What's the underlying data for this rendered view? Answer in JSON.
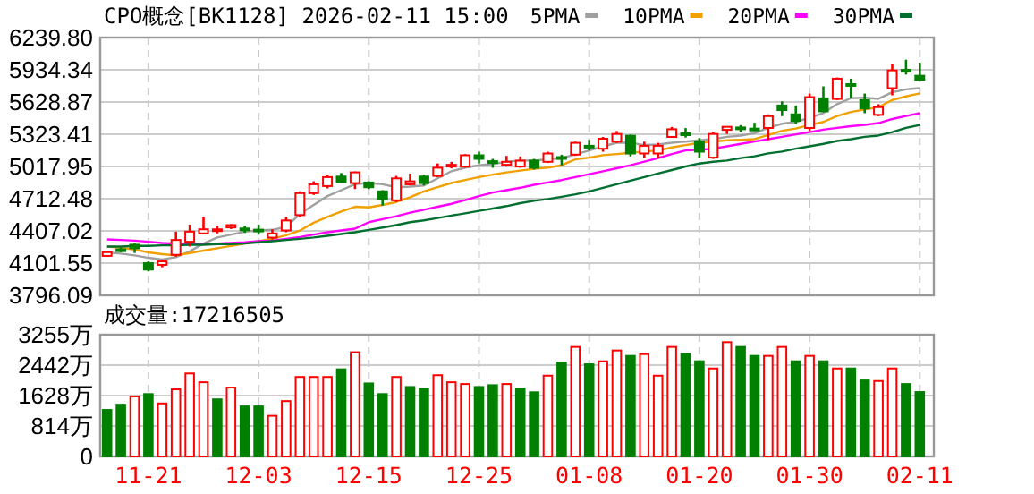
{
  "chart_data": [
    {
      "type": "candlestick",
      "title": "CPO概念[BK1128] 2026-02-11 15:00",
      "categories": [
        null,
        null,
        null,
        null,
        null,
        null,
        null,
        null,
        null,
        null,
        null,
        null,
        null,
        null,
        null,
        null,
        null,
        null,
        null,
        null,
        null,
        null,
        null,
        null,
        null,
        null,
        null,
        null,
        null,
        null,
        null,
        null,
        null,
        null,
        null,
        null,
        null,
        null,
        null,
        null,
        null,
        null,
        null,
        null,
        null,
        null,
        null,
        null,
        null,
        null,
        null,
        null,
        null,
        null,
        null,
        null,
        null,
        null,
        null,
        null
      ],
      "ohlc": [
        [
          4170,
          4210,
          4165,
          4205
        ],
        [
          4232,
          4250,
          4205,
          4226
        ],
        [
          4276,
          4287,
          4198,
          4242
        ],
        [
          4101,
          4118,
          4023,
          4040
        ],
        [
          4085,
          4130,
          4062,
          4118
        ],
        [
          4180,
          4400,
          4163,
          4321
        ],
        [
          4304,
          4467,
          4259,
          4400
        ],
        [
          4383,
          4540,
          4380,
          4422
        ],
        [
          4416,
          4456,
          4383,
          4422
        ],
        [
          4440,
          4470,
          4425,
          4462
        ],
        [
          4430,
          4456,
          4388,
          4425
        ],
        [
          4419,
          4467,
          4371,
          4410
        ],
        [
          4343,
          4422,
          4326,
          4383
        ],
        [
          4411,
          4540,
          4394,
          4506
        ],
        [
          4557,
          4782,
          4540,
          4765
        ],
        [
          4765,
          4877,
          4748,
          4849
        ],
        [
          4832,
          4939,
          4810,
          4917
        ],
        [
          4922,
          4956,
          4860,
          4872
        ],
        [
          4860,
          4970,
          4804,
          4962
        ],
        [
          4866,
          4877,
          4804,
          4821
        ],
        [
          4782,
          4793,
          4647,
          4709
        ],
        [
          4697,
          4928,
          4680,
          4905
        ],
        [
          4849,
          4950,
          4838,
          4877
        ],
        [
          4922,
          4939,
          4838,
          4860
        ],
        [
          4928,
          5046,
          4917,
          5006
        ],
        [
          5028,
          5062,
          5000,
          5034
        ],
        [
          5017,
          5135,
          5006,
          5124
        ],
        [
          5124,
          5158,
          5046,
          5090
        ],
        [
          5068,
          5090,
          5006,
          5062
        ],
        [
          5034,
          5118,
          5017,
          5062
        ],
        [
          5017,
          5113,
          5006,
          5073
        ],
        [
          5073,
          5090,
          4989,
          5006
        ],
        [
          5062,
          5158,
          5051,
          5141
        ],
        [
          5107,
          5129,
          5028,
          5096
        ],
        [
          5130,
          5253,
          5118,
          5242
        ],
        [
          5214,
          5270,
          5169,
          5208
        ],
        [
          5186,
          5298,
          5158,
          5281
        ],
        [
          5253,
          5354,
          5242,
          5326
        ],
        [
          5309,
          5320,
          5113,
          5141
        ],
        [
          5141,
          5253,
          5101,
          5214
        ],
        [
          5141,
          5242,
          5101,
          5214
        ],
        [
          5298,
          5393,
          5298,
          5371
        ],
        [
          5332,
          5382,
          5292,
          5320
        ],
        [
          5253,
          5287,
          5102,
          5158
        ],
        [
          5102,
          5343,
          5090,
          5326
        ],
        [
          5365,
          5396,
          5326,
          5394
        ],
        [
          5388,
          5410,
          5343,
          5382
        ],
        [
          5377,
          5433,
          5354,
          5371
        ],
        [
          5383,
          5512,
          5270,
          5495
        ],
        [
          5596,
          5635,
          5495,
          5552
        ],
        [
          5512,
          5596,
          5422,
          5450
        ],
        [
          5383,
          5709,
          5355,
          5675
        ],
        [
          5664,
          5777,
          5534,
          5540
        ],
        [
          5658,
          5861,
          5647,
          5850
        ],
        [
          5799,
          5850,
          5664,
          5793
        ],
        [
          5647,
          5709,
          5523,
          5568
        ],
        [
          5507,
          5608,
          5495,
          5580
        ],
        [
          5760,
          5985,
          5692,
          5929
        ],
        [
          5934,
          6030,
          5889,
          5923
        ],
        [
          5878,
          6002,
          5833,
          5838
        ]
      ],
      "colors": [
        "#ff0000",
        "#008000",
        "#008000",
        "#008000",
        "#ff0000",
        "#ff0000",
        "#ff0000",
        "#ff0000",
        "#ff0000",
        "#ff0000",
        "#008000",
        "#008000",
        "#ff0000",
        "#ff0000",
        "#ff0000",
        "#ff0000",
        "#ff0000",
        "#008000",
        "#ff0000",
        "#008000",
        "#008000",
        "#ff0000",
        "#ff0000",
        "#008000",
        "#ff0000",
        "#ff0000",
        "#ff0000",
        "#008000",
        "#008000",
        "#ff0000",
        "#ff0000",
        "#008000",
        "#ff0000",
        "#008000",
        "#ff0000",
        "#008000",
        "#ff0000",
        "#ff0000",
        "#008000",
        "#ff0000",
        "#ff0000",
        "#ff0000",
        "#008000",
        "#008000",
        "#ff0000",
        "#ff0000",
        "#008000",
        "#008000",
        "#ff0000",
        "#008000",
        "#008000",
        "#ff0000",
        "#008000",
        "#ff0000",
        "#008000",
        "#008000",
        "#ff0000",
        "#ff0000",
        "#008000",
        "#008000"
      ],
      "series": [
        {
          "name": "5PMA",
          "type": "line",
          "color": "#a0a0a0",
          "values": [
            4203,
            4192,
            4175,
            4152,
            4136,
            4158,
            4214,
            4287,
            4344,
            4372,
            4400,
            4411,
            4417,
            4445,
            4568,
            4653,
            4737,
            4793,
            4850,
            4861,
            4850,
            4821,
            4827,
            4838,
            4906,
            4973,
            5007,
            5029,
            5041,
            5063,
            5074,
            5074,
            5086,
            5097,
            5131,
            5170,
            5209,
            5243,
            5243,
            5221,
            5226,
            5243,
            5254,
            5266,
            5277,
            5299,
            5311,
            5333,
            5384,
            5423,
            5440,
            5479,
            5524,
            5609,
            5665,
            5670,
            5659,
            5721,
            5749,
            5760
          ]
        },
        {
          "name": "10PMA",
          "type": "line",
          "color": "#f0a000",
          "values": [
            4259,
            4248,
            4231,
            4203,
            4186,
            4175,
            4197,
            4220,
            4242,
            4265,
            4287,
            4310,
            4332,
            4366,
            4411,
            4484,
            4540,
            4591,
            4636,
            4630,
            4653,
            4681,
            4726,
            4782,
            4821,
            4861,
            4889,
            4917,
            4940,
            4962,
            4979,
            4996,
            5007,
            5029,
            5086,
            5102,
            5125,
            5136,
            5147,
            5159,
            5170,
            5198,
            5221,
            5243,
            5254,
            5266,
            5271,
            5277,
            5316,
            5356,
            5378,
            5412,
            5440,
            5496,
            5535,
            5558,
            5580,
            5648,
            5682,
            5710
          ]
        },
        {
          "name": "20PMA",
          "type": "line",
          "color": "#ff00ff",
          "values": [
            4327,
            4321,
            4315,
            4304,
            4293,
            4287,
            4282,
            4282,
            4287,
            4293,
            4299,
            4310,
            4315,
            4332,
            4349,
            4372,
            4394,
            4411,
            4428,
            4490,
            4518,
            4546,
            4580,
            4608,
            4636,
            4664,
            4698,
            4737,
            4771,
            4793,
            4816,
            4844,
            4866,
            4889,
            4917,
            4945,
            4973,
            5001,
            5029,
            5063,
            5097,
            5136,
            5170,
            5176,
            5187,
            5209,
            5232,
            5254,
            5277,
            5299,
            5322,
            5344,
            5367,
            5384,
            5400,
            5412,
            5429,
            5468,
            5496,
            5524
          ]
        },
        {
          "name": "30PMA",
          "type": "line",
          "color": "#006f30",
          "values": [
            4259,
            4259,
            4265,
            4265,
            4270,
            4270,
            4276,
            4276,
            4282,
            4282,
            4287,
            4299,
            4310,
            4321,
            4332,
            4344,
            4360,
            4377,
            4394,
            4417,
            4439,
            4462,
            4490,
            4507,
            4529,
            4552,
            4574,
            4597,
            4619,
            4642,
            4670,
            4692,
            4709,
            4731,
            4754,
            4782,
            4816,
            4850,
            4883,
            4917,
            4951,
            4984,
            5018,
            5046,
            5063,
            5074,
            5097,
            5114,
            5142,
            5159,
            5187,
            5209,
            5232,
            5260,
            5277,
            5299,
            5311,
            5344,
            5384,
            5412
          ]
        }
      ],
      "ylim": [
        3796.09,
        6239.8
      ],
      "yticks": [
        {
          "value": 3796.09,
          "label": "3796.09"
        },
        {
          "value": 4101.55,
          "label": "4101.55"
        },
        {
          "value": 4407.02,
          "label": "4407.02"
        },
        {
          "value": 4712.48,
          "label": "4712.48"
        },
        {
          "value": 5017.95,
          "label": "5017.95"
        },
        {
          "value": 5323.41,
          "label": "5323.41"
        },
        {
          "value": 5628.87,
          "label": "5628.87"
        },
        {
          "value": 5934.34,
          "label": "5934.34"
        },
        {
          "value": 6239.8,
          "label": "6239.80"
        }
      ],
      "grid": true,
      "legend": "top right"
    },
    {
      "type": "bar",
      "title": "成交量:17216505",
      "categories": [
        null,
        null,
        null,
        "11-21",
        null,
        null,
        null,
        null,
        null,
        null,
        null,
        "12-03",
        null,
        null,
        null,
        null,
        null,
        null,
        null,
        "12-15",
        null,
        null,
        null,
        null,
        null,
        null,
        null,
        "12-25",
        null,
        null,
        null,
        null,
        null,
        null,
        null,
        "01-08",
        null,
        null,
        null,
        null,
        null,
        null,
        null,
        "01-20",
        null,
        null,
        null,
        null,
        null,
        null,
        null,
        "01-30",
        null,
        null,
        null,
        null,
        null,
        null,
        null,
        "02-11"
      ],
      "values": [
        1243,
        1385,
        1605,
        1668,
        1417,
        1794,
        2219,
        1983,
        1527,
        1841,
        1338,
        1338,
        1086,
        1480,
        2125,
        2125,
        2125,
        2330,
        2786,
        1952,
        1668,
        2125,
        1857,
        1810,
        2172,
        1983,
        1936,
        1857,
        1905,
        1936,
        1810,
        1716,
        2160,
        2512,
        2928,
        2464,
        2544,
        2832,
        2688,
        2736,
        2160,
        2928,
        2736,
        2544,
        2352,
        3056,
        2928,
        2688,
        2688,
        2928,
        2544,
        2688,
        2544,
        2352,
        2352,
        2032,
        2016,
        2352,
        1936,
        1722
      ],
      "colors": [
        "#008000",
        "#008000",
        "#ff0000",
        "#008000",
        "#ff0000",
        "#ff0000",
        "#ff0000",
        "#ff0000",
        "#008000",
        "#ff0000",
        "#008000",
        "#008000",
        "#ff0000",
        "#ff0000",
        "#ff0000",
        "#ff0000",
        "#ff0000",
        "#008000",
        "#ff0000",
        "#008000",
        "#008000",
        "#ff0000",
        "#008000",
        "#008000",
        "#ff0000",
        "#ff0000",
        "#ff0000",
        "#008000",
        "#008000",
        "#ff0000",
        "#008000",
        "#008000",
        "#ff0000",
        "#008000",
        "#ff0000",
        "#008000",
        "#ff0000",
        "#ff0000",
        "#008000",
        "#ff0000",
        "#ff0000",
        "#ff0000",
        "#008000",
        "#008000",
        "#ff0000",
        "#ff0000",
        "#008000",
        "#008000",
        "#ff0000",
        "#ff0000",
        "#008000",
        "#ff0000",
        "#008000",
        "#ff0000",
        "#008000",
        "#008000",
        "#ff0000",
        "#ff0000",
        "#008000",
        "#008000"
      ],
      "ylim": [
        0,
        3255
      ],
      "yticks": [
        0,
        {
          "value": 814,
          "label": "814万"
        },
        {
          "value": 1628,
          "label": "1628万"
        },
        {
          "value": 2442,
          "label": "2442万"
        },
        {
          "value": 3255,
          "label": "3255万"
        }
      ],
      "grid": true
    }
  ]
}
